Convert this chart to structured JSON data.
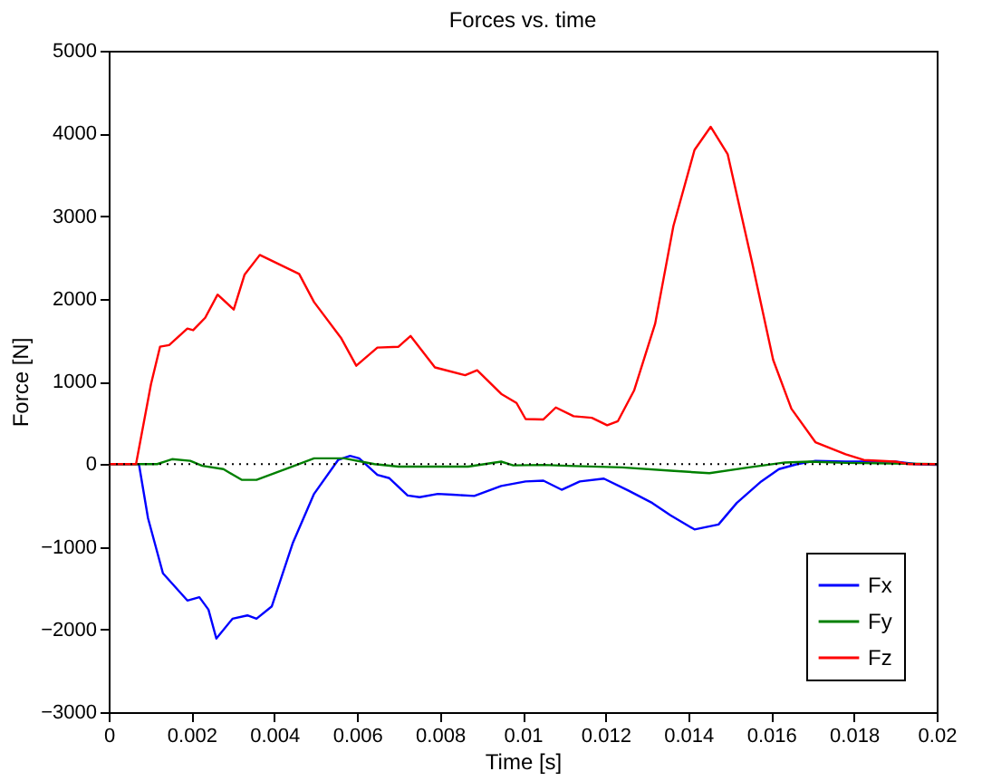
{
  "chart_data": {
    "type": "line",
    "title": "Forces vs. time",
    "xlabel": "Time [s]",
    "ylabel": "Force [N]",
    "xlim": [
      0,
      0.02
    ],
    "xticks": [
      0,
      0.002,
      0.004,
      0.006,
      0.008,
      0.01,
      0.012,
      0.014,
      0.016,
      0.018,
      0.02
    ],
    "ylim": [
      -3000,
      5000
    ],
    "yticks": [
      -3000,
      -2000,
      -1000,
      0,
      1000,
      2000,
      3000,
      4000,
      5000
    ],
    "grid": false,
    "legend": "bottom right",
    "marker": "none",
    "line_style": "solid",
    "ref_lines": [
      {
        "axis": "y",
        "value": 0,
        "color": "#000000",
        "line_style": "dotted"
      }
    ],
    "series": [
      {
        "name": "Fx",
        "color": "#0000ff",
        "x": [
          0,
          0.00073,
          0.00095,
          0.00131,
          0.0019,
          0.00219,
          0.00241,
          0.0026,
          0.00299,
          0.00335,
          0.00357,
          0.00394,
          0.00445,
          0.00496,
          0.00554,
          0.00583,
          0.00605,
          0.00649,
          0.00678,
          0.00722,
          0.00751,
          0.00795,
          0.00831,
          0.00883,
          0.00948,
          0.01007,
          0.0105,
          0.01094,
          0.01138,
          0.01196,
          0.01255,
          0.01313,
          0.01357,
          0.01415,
          0.01473,
          0.01517,
          0.01576,
          0.01619,
          0.01663,
          0.01707,
          0.0178,
          0.0185,
          0.019,
          0.0195,
          0.02
        ],
        "values": [
          0,
          0,
          -655,
          -1320,
          -1650,
          -1610,
          -1760,
          -2110,
          -1870,
          -1830,
          -1870,
          -1720,
          -950,
          -360,
          50,
          100,
          70,
          -130,
          -170,
          -380,
          -400,
          -360,
          -370,
          -385,
          -265,
          -210,
          -200,
          -310,
          -210,
          -175,
          -320,
          -470,
          -620,
          -790,
          -730,
          -470,
          -210,
          -60,
          0,
          40,
          30,
          30,
          30,
          0,
          -10
        ]
      },
      {
        "name": "Fy",
        "color": "#008000",
        "x": [
          0,
          0.00117,
          0.00153,
          0.00197,
          0.00226,
          0.00277,
          0.00321,
          0.00357,
          0.00438,
          0.00496,
          0.00569,
          0.00642,
          0.007,
          0.00868,
          0.00948,
          0.00977,
          0.0105,
          0.01108,
          0.0124,
          0.01357,
          0.01451,
          0.01546,
          0.01634,
          0.01692,
          0.0178,
          0.02
        ],
        "values": [
          0,
          0,
          60,
          40,
          -20,
          -60,
          -190,
          -190,
          -40,
          70,
          70,
          0,
          -30,
          -30,
          30,
          -15,
          -10,
          -20,
          -40,
          -80,
          -110,
          -40,
          20,
          30,
          15,
          0
        ]
      },
      {
        "name": "Fz",
        "color": "#ff0000",
        "x": [
          0,
          0.00066,
          0.00102,
          0.00124,
          0.00146,
          0.0019,
          0.00204,
          0.00233,
          0.00263,
          0.00302,
          0.00328,
          0.00365,
          0.0046,
          0.00496,
          0.00562,
          0.00598,
          0.00649,
          0.007,
          0.00729,
          0.00788,
          0.00861,
          0.0089,
          0.00948,
          0.00985,
          0.01007,
          0.0105,
          0.0108,
          0.01123,
          0.01167,
          0.01204,
          0.0123,
          0.01269,
          0.0132,
          0.01364,
          0.01415,
          0.01454,
          0.01495,
          0.01554,
          0.01605,
          0.01649,
          0.01707,
          0.0178,
          0.01824,
          0.019,
          0.01933,
          0.02
        ],
        "values": [
          0,
          0,
          965,
          1420,
          1440,
          1640,
          1620,
          1770,
          2050,
          1870,
          2290,
          2530,
          2300,
          1960,
          1520,
          1190,
          1410,
          1420,
          1550,
          1170,
          1075,
          1135,
          850,
          740,
          545,
          540,
          685,
          580,
          560,
          470,
          520,
          890,
          1700,
          2880,
          3800,
          4080,
          3750,
          2440,
          1260,
          670,
          265,
          120,
          50,
          30,
          0,
          0
        ]
      }
    ]
  }
}
